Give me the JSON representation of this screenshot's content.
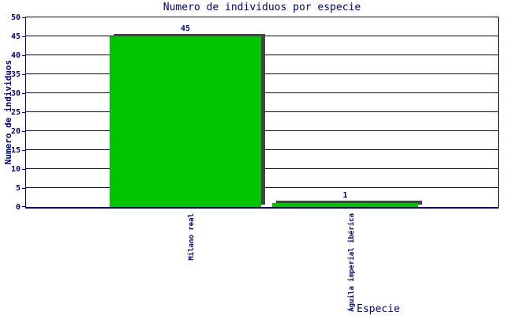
{
  "chart_data": {
    "type": "bar",
    "title": "Numero de individuos por especie",
    "xlabel": "Especie",
    "ylabel": "Numero de individuos",
    "categories": [
      "Milano real",
      "Águila imperial ibérica"
    ],
    "values": [
      45,
      1
    ],
    "value_labels": [
      "45",
      "1"
    ],
    "ylim": [
      0,
      50
    ],
    "ytick_step": 5,
    "yticks": [
      0,
      5,
      10,
      15,
      20,
      25,
      30,
      35,
      40,
      45,
      50
    ],
    "grid": "horizontal",
    "legend": "none",
    "colors": {
      "bar": "#00c400",
      "bar_shadow": "#444444",
      "axis": "#000080",
      "grid": "#000080",
      "text": "#000080",
      "background": "#ffffff"
    }
  }
}
